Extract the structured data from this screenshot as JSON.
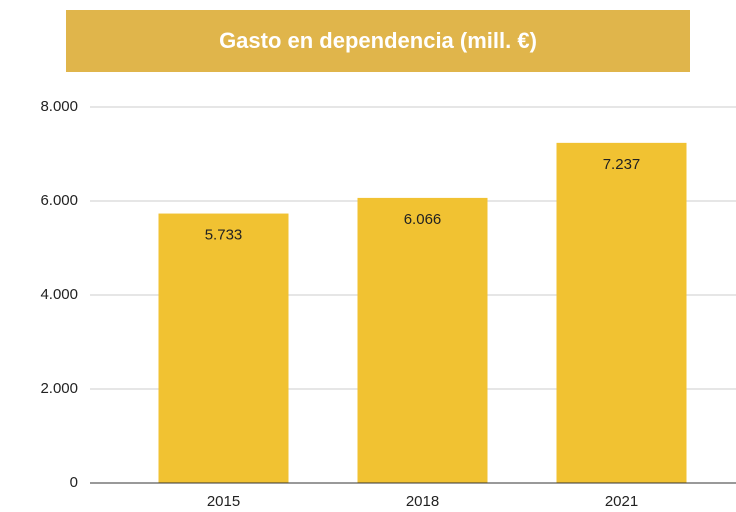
{
  "chart_data": {
    "type": "bar",
    "title": "Gasto en dependencia (mill. €)",
    "categories": [
      "2015",
      "2018",
      "2021"
    ],
    "values": [
      5733,
      6066,
      7237
    ],
    "value_labels": [
      "5.733",
      "6.066",
      "7.237"
    ],
    "color": "#f1c232",
    "ylim": [
      0,
      8000
    ],
    "yticks": [
      0,
      {
        "value": 2000,
        "label": "2.000"
      },
      {
        "value": 4000,
        "label": "4.000"
      },
      {
        "value": 6000,
        "label": "6.000"
      },
      {
        "value": 8000,
        "label": "8.000"
      }
    ],
    "grid": true
  }
}
